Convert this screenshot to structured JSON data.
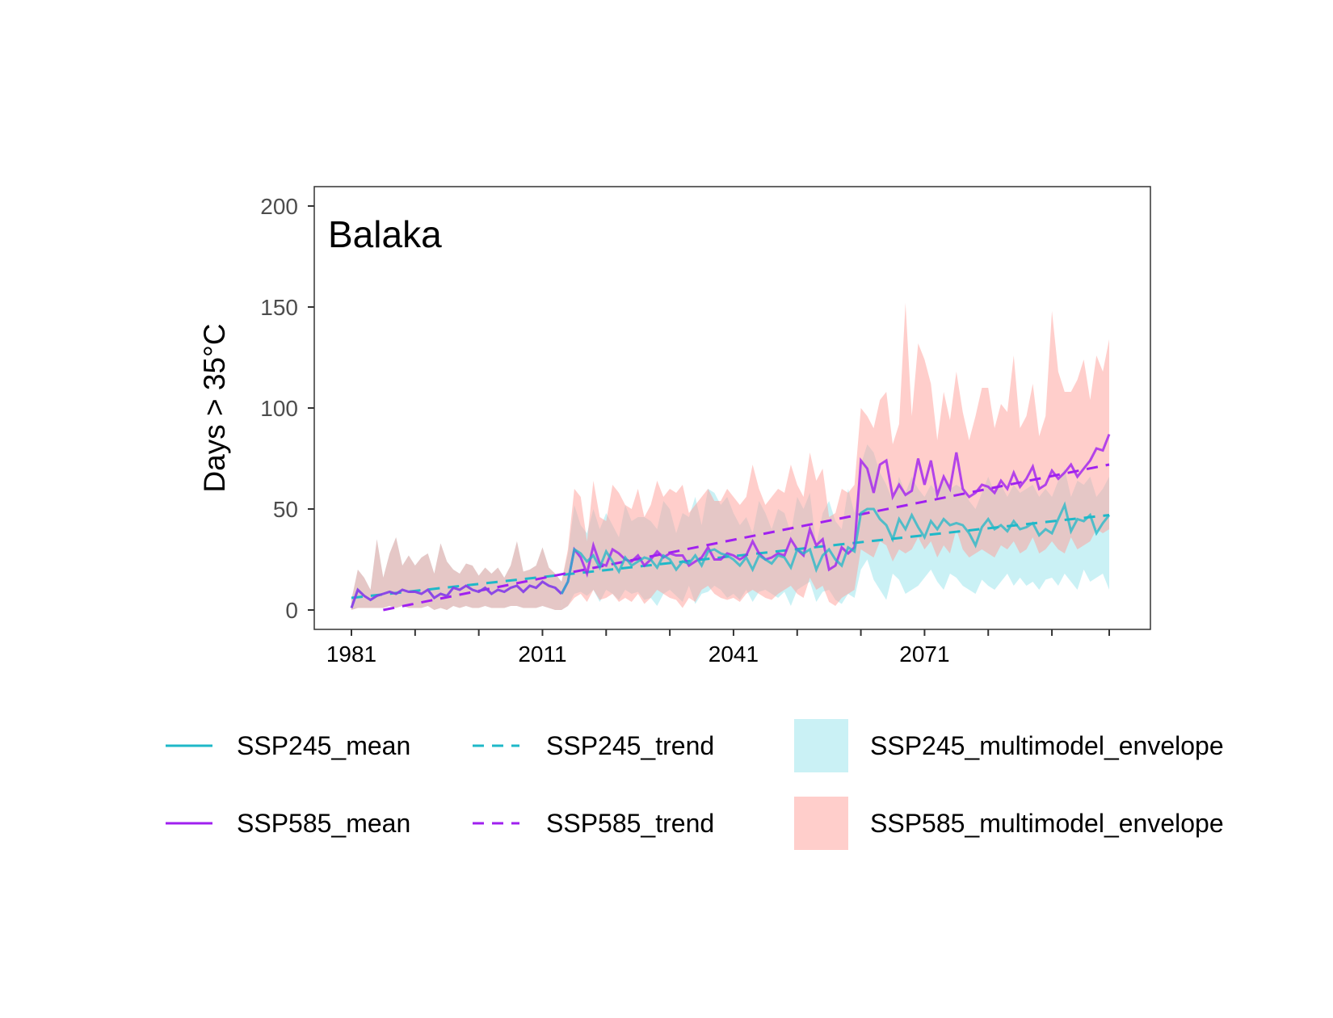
{
  "chart_data": {
    "type": "line",
    "title": "Balaka",
    "ylabel": "Days > 35°C",
    "xlabel": "",
    "xlim": [
      1981,
      2100
    ],
    "ylim": [
      0,
      200
    ],
    "x_ticks": [
      1981,
      1991,
      2001,
      2011,
      2021,
      2031,
      2041,
      2051,
      2061,
      2071,
      2081,
      2091,
      2100
    ],
    "x_tick_labels": [
      "1981",
      "2011",
      "2041",
      "2071"
    ],
    "x_tick_label_years": [
      1981,
      2011,
      2041,
      2071
    ],
    "y_ticks": [
      0,
      50,
      100,
      150,
      200
    ],
    "y_tick_labels": [
      "0",
      "50",
      "100",
      "150",
      "200"
    ],
    "grid": false,
    "legend_position": "bottom",
    "colors": {
      "ssp245_line": "#1fb8c8",
      "ssp585_line": "#a020f0",
      "ssp245_envelope": "#9ee6ec",
      "ssp585_envelope": "#ff9d98",
      "panel_border": "#333333"
    },
    "legend": [
      {
        "label": "SSP245_mean",
        "kind": "line"
      },
      {
        "label": "SSP245_trend",
        "kind": "dashed"
      },
      {
        "label": "SSP245_multimodel_envelope",
        "kind": "fill"
      },
      {
        "label": "SSP585_mean",
        "kind": "line"
      },
      {
        "label": "SSP585_trend",
        "kind": "dashed"
      },
      {
        "label": "SSP585_multimodel_envelope",
        "kind": "fill"
      }
    ],
    "historical": {
      "x": [
        1981,
        1982,
        1983,
        1984,
        1985,
        1986,
        1987,
        1988,
        1989,
        1990,
        1991,
        1992,
        1993,
        1994,
        1995,
        1996,
        1997,
        1998,
        1999,
        2000,
        2001,
        2002,
        2003,
        2004,
        2005,
        2006,
        2007,
        2008,
        2009,
        2010,
        2011,
        2012,
        2013,
        2014
      ],
      "mean": [
        1,
        10,
        7,
        5,
        7,
        8,
        9,
        8,
        10,
        9,
        9,
        8,
        10,
        6,
        8,
        7,
        11,
        10,
        12,
        10,
        9,
        11,
        8,
        10,
        9,
        11,
        12,
        9,
        12,
        11,
        14,
        12,
        11,
        8
      ],
      "lower": [
        0,
        1,
        1,
        1,
        1,
        1,
        2,
        1,
        2,
        1,
        1,
        1,
        2,
        0,
        1,
        0,
        2,
        1,
        2,
        1,
        1,
        2,
        1,
        1,
        1,
        2,
        2,
        1,
        1,
        1,
        2,
        1,
        0,
        0
      ],
      "upper": [
        5,
        20,
        16,
        10,
        35,
        16,
        28,
        36,
        22,
        27,
        22,
        26,
        28,
        18,
        33,
        24,
        20,
        18,
        23,
        22,
        17,
        21,
        18,
        21,
        16,
        22,
        34,
        19,
        20,
        22,
        31,
        21,
        18,
        14
      ]
    },
    "series": [
      {
        "name": "SSP245_mean",
        "x": [
          2014,
          2015,
          2016,
          2017,
          2018,
          2019,
          2020,
          2021,
          2022,
          2023,
          2024,
          2025,
          2026,
          2027,
          2028,
          2029,
          2030,
          2031,
          2032,
          2033,
          2034,
          2035,
          2036,
          2037,
          2038,
          2039,
          2040,
          2041,
          2042,
          2043,
          2044,
          2045,
          2046,
          2047,
          2048,
          2049,
          2050,
          2051,
          2052,
          2053,
          2054,
          2055,
          2056,
          2057,
          2058,
          2059,
          2060,
          2061,
          2062,
          2063,
          2064,
          2065,
          2066,
          2067,
          2068,
          2069,
          2070,
          2071,
          2072,
          2073,
          2074,
          2075,
          2076,
          2077,
          2078,
          2079,
          2080,
          2081,
          2082,
          2083,
          2084,
          2085,
          2086,
          2087,
          2088,
          2089,
          2090,
          2091,
          2092,
          2093,
          2094,
          2095,
          2096,
          2097,
          2098,
          2099,
          2100
        ],
        "values": [
          8,
          14,
          30,
          28,
          24,
          27,
          21,
          29,
          24,
          19,
          26,
          22,
          24,
          26,
          25,
          21,
          27,
          25,
          20,
          24,
          23,
          27,
          22,
          29,
          30,
          28,
          27,
          25,
          22,
          26,
          20,
          27,
          25,
          23,
          27,
          26,
          21,
          30,
          28,
          30,
          20,
          27,
          30,
          25,
          22,
          31,
          29,
          48,
          50,
          50,
          45,
          42,
          35,
          45,
          40,
          47,
          41,
          36,
          44,
          40,
          45,
          42,
          43,
          42,
          38,
          32,
          41,
          45,
          40,
          42,
          39,
          44,
          40,
          41,
          43,
          37,
          40,
          38,
          45,
          52,
          39,
          45,
          44,
          47,
          38,
          43,
          47
        ]
      },
      {
        "name": "SSP585_mean",
        "x": [
          2014,
          2015,
          2016,
          2017,
          2018,
          2019,
          2020,
          2021,
          2022,
          2023,
          2024,
          2025,
          2026,
          2027,
          2028,
          2029,
          2030,
          2031,
          2032,
          2033,
          2034,
          2035,
          2036,
          2037,
          2038,
          2039,
          2040,
          2041,
          2042,
          2043,
          2044,
          2045,
          2046,
          2047,
          2048,
          2049,
          2050,
          2051,
          2052,
          2053,
          2054,
          2055,
          2056,
          2057,
          2058,
          2059,
          2060,
          2061,
          2062,
          2063,
          2064,
          2065,
          2066,
          2067,
          2068,
          2069,
          2070,
          2071,
          2072,
          2073,
          2074,
          2075,
          2076,
          2077,
          2078,
          2079,
          2080,
          2081,
          2082,
          2083,
          2084,
          2085,
          2086,
          2087,
          2088,
          2089,
          2090,
          2091,
          2092,
          2093,
          2094,
          2095,
          2096,
          2097,
          2098,
          2099,
          2100
        ],
        "values": [
          8,
          14,
          30,
          26,
          18,
          32,
          23,
          22,
          30,
          28,
          25,
          24,
          27,
          22,
          25,
          29,
          26,
          28,
          27,
          27,
          22,
          24,
          26,
          31,
          25,
          25,
          28,
          27,
          25,
          27,
          34,
          28,
          25,
          26,
          28,
          27,
          35,
          30,
          27,
          40,
          32,
          35,
          20,
          22,
          31,
          28,
          31,
          74,
          70,
          58,
          72,
          74,
          56,
          62,
          57,
          59,
          75,
          62,
          74,
          57,
          66,
          60,
          78,
          60,
          56,
          58,
          62,
          61,
          58,
          64,
          60,
          68,
          61,
          65,
          71,
          60,
          62,
          69,
          65,
          68,
          72,
          66,
          70,
          74,
          80,
          79,
          87
        ]
      },
      {
        "name": "SSP245_trend",
        "x": [
          1981,
          2100
        ],
        "values": [
          6,
          47
        ]
      },
      {
        "name": "SSP585_trend",
        "x": [
          1986,
          2100
        ],
        "values": [
          0,
          72
        ]
      }
    ],
    "envelopes": [
      {
        "name": "SSP245_multimodel_envelope",
        "x": [
          2014,
          2015,
          2016,
          2017,
          2018,
          2019,
          2020,
          2021,
          2022,
          2023,
          2024,
          2025,
          2026,
          2027,
          2028,
          2029,
          2030,
          2031,
          2032,
          2033,
          2034,
          2035,
          2036,
          2037,
          2038,
          2039,
          2040,
          2041,
          2042,
          2043,
          2044,
          2045,
          2046,
          2047,
          2048,
          2049,
          2050,
          2051,
          2052,
          2053,
          2054,
          2055,
          2056,
          2057,
          2058,
          2059,
          2060,
          2061,
          2062,
          2063,
          2064,
          2065,
          2066,
          2067,
          2068,
          2069,
          2070,
          2071,
          2072,
          2073,
          2074,
          2075,
          2076,
          2077,
          2078,
          2079,
          2080,
          2081,
          2082,
          2083,
          2084,
          2085,
          2086,
          2087,
          2088,
          2089,
          2090,
          2091,
          2092,
          2093,
          2094,
          2095,
          2096,
          2097,
          2098,
          2099,
          2100
        ],
        "lower": [
          0,
          2,
          8,
          9,
          7,
          10,
          4,
          10,
          8,
          5,
          10,
          8,
          9,
          5,
          6,
          2,
          8,
          10,
          7,
          4,
          12,
          3,
          8,
          9,
          12,
          10,
          6,
          8,
          5,
          10,
          4,
          9,
          10,
          8,
          6,
          9,
          2,
          10,
          12,
          14,
          4,
          9,
          10,
          5,
          3,
          8,
          6,
          20,
          25,
          15,
          10,
          5,
          18,
          15,
          8,
          10,
          12,
          16,
          20,
          14,
          10,
          18,
          16,
          12,
          10,
          8,
          15,
          12,
          10,
          14,
          18,
          12,
          16,
          12,
          14,
          10,
          15,
          16,
          12,
          18,
          14,
          10,
          20,
          14,
          16,
          18,
          10
        ],
        "upper": [
          14,
          28,
          52,
          42,
          38,
          50,
          40,
          48,
          42,
          36,
          52,
          44,
          46,
          46,
          44,
          40,
          54,
          50,
          38,
          48,
          46,
          56,
          42,
          60,
          58,
          52,
          56,
          48,
          42,
          46,
          38,
          54,
          48,
          40,
          50,
          48,
          38,
          56,
          50,
          58,
          32,
          48,
          54,
          44,
          40,
          60,
          48,
          72,
          82,
          78,
          68,
          62,
          54,
          66,
          58,
          66,
          60,
          56,
          62,
          58,
          64,
          60,
          62,
          60,
          54,
          50,
          58,
          66,
          58,
          62,
          56,
          62,
          58,
          60,
          62,
          56,
          60,
          56,
          64,
          70,
          56,
          64,
          62,
          66,
          56,
          60,
          66
        ]
      },
      {
        "name": "SSP585_multimodel_envelope",
        "x": [
          2014,
          2015,
          2016,
          2017,
          2018,
          2019,
          2020,
          2021,
          2022,
          2023,
          2024,
          2025,
          2026,
          2027,
          2028,
          2029,
          2030,
          2031,
          2032,
          2033,
          2034,
          2035,
          2036,
          2037,
          2038,
          2039,
          2040,
          2041,
          2042,
          2043,
          2044,
          2045,
          2046,
          2047,
          2048,
          2049,
          2050,
          2051,
          2052,
          2053,
          2054,
          2055,
          2056,
          2057,
          2058,
          2059,
          2060,
          2061,
          2062,
          2063,
          2064,
          2065,
          2066,
          2067,
          2068,
          2069,
          2070,
          2071,
          2072,
          2073,
          2074,
          2075,
          2076,
          2077,
          2078,
          2079,
          2080,
          2081,
          2082,
          2083,
          2084,
          2085,
          2086,
          2087,
          2088,
          2089,
          2090,
          2091,
          2092,
          2093,
          2094,
          2095,
          2096,
          2097,
          2098,
          2099,
          2100
        ],
        "lower": [
          0,
          2,
          6,
          8,
          4,
          10,
          5,
          6,
          8,
          4,
          6,
          4,
          8,
          3,
          6,
          10,
          8,
          6,
          5,
          1,
          6,
          4,
          10,
          12,
          8,
          6,
          5,
          6,
          4,
          8,
          10,
          8,
          6,
          5,
          8,
          10,
          12,
          8,
          6,
          16,
          10,
          12,
          4,
          2,
          6,
          8,
          10,
          30,
          28,
          26,
          34,
          32,
          24,
          30,
          28,
          30,
          36,
          30,
          34,
          26,
          32,
          28,
          40,
          30,
          26,
          28,
          30,
          28,
          26,
          32,
          30,
          34,
          28,
          30,
          36,
          28,
          30,
          34,
          30,
          28,
          36,
          30,
          32,
          34,
          40,
          38,
          40
        ],
        "upper": [
          14,
          30,
          60,
          56,
          34,
          64,
          46,
          44,
          62,
          58,
          52,
          50,
          60,
          46,
          52,
          64,
          56,
          60,
          58,
          62,
          48,
          52,
          56,
          60,
          54,
          54,
          60,
          56,
          52,
          56,
          72,
          60,
          52,
          56,
          60,
          58,
          72,
          62,
          56,
          78,
          64,
          70,
          46,
          48,
          60,
          58,
          62,
          100,
          96,
          90,
          104,
          108,
          82,
          92,
          152,
          96,
          132,
          124,
          112,
          84,
          108,
          94,
          118,
          98,
          84,
          96,
          110,
          110,
          90,
          102,
          98,
          126,
          90,
          96,
          112,
          86,
          96,
          148,
          118,
          108,
          108,
          114,
          124,
          104,
          126,
          118,
          134
        ]
      }
    ]
  }
}
